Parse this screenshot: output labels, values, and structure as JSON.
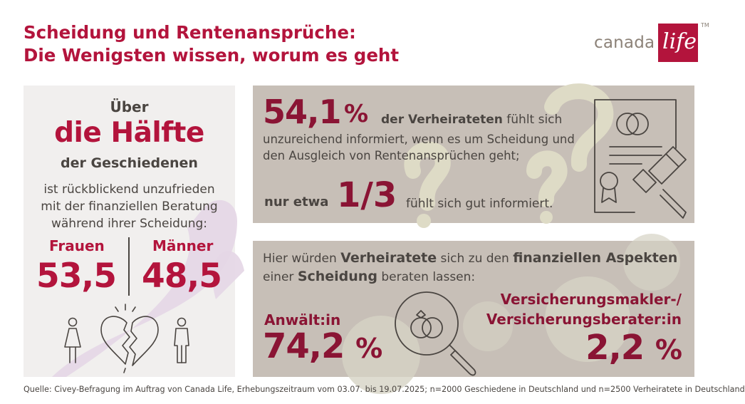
{
  "title": {
    "line1": "Scheidung und Rentenansprüche:",
    "line2": "Die Wenigsten wissen, worum es geht"
  },
  "logo": {
    "word": "canada",
    "life": "life",
    "tm": "TM",
    "brand_color": "#b3143c"
  },
  "left_panel": {
    "ueber": "Über",
    "haelfte": "die Hälfte",
    "geschiedenen": "der Geschiedenen",
    "desc_lines": [
      "ist rückblickend unzufrieden",
      "mit der finanziellen Beratung",
      "während ihrer Scheidung:"
    ],
    "women_label": "Frauen",
    "women_value": "53,5",
    "men_label": "Männer",
    "men_value": "48,5",
    "icons": [
      "woman-icon",
      "broken-heart-icon",
      "man-icon"
    ]
  },
  "informed_panel": {
    "value": "54,1",
    "percent": "%",
    "bold_part": "der Verheirateten",
    "text_part": " fühlt sich",
    "lines": [
      "unzureichend informiert, wenn es um Scheidung und",
      "den Ausgleich von Rentenansprüchen geht;"
    ],
    "nur_etwa": "nur etwa",
    "fraction": "1/3",
    "fraction_text": "fühlt sich gut informiert.",
    "icon": "certificate-gavel-icon"
  },
  "advice_panel": {
    "intro_1_a": "Hier würden ",
    "intro_1_b": "Verheiratete",
    "intro_1_c": " sich zu den ",
    "intro_1_d": "finanziellen Aspekten",
    "intro_2_a": "einer ",
    "intro_2_b": "Scheidung",
    "intro_2_c": " beraten lassen:",
    "lawyer_label": "Anwält:in",
    "lawyer_value": "74,2",
    "broker_label_1": "Versicherungsmakler-/",
    "broker_label_2": "Versicherungsberater:in",
    "broker_value": "2,2",
    "percent": "%",
    "icon": "magnifier-rings-icon"
  },
  "source": "Quelle: Civey-Befragung im Auftrag von Canada Life, Erhebungszeitraum vom 03.07. bis 19.07.2025; n=2000 Geschiedene in Deutschland und n=2500 Verheiratete in Deutschland",
  "colors": {
    "accent_red": "#b3143c",
    "dark_red": "#8a1434",
    "panel_grey": "#c7bfb7",
    "panel_light": "#f1efee",
    "text": "#4a4541"
  }
}
